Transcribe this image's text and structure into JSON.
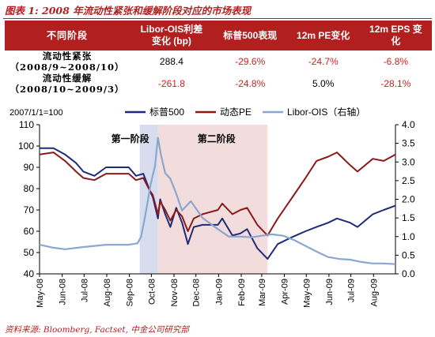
{
  "title": "图表 1: 2008 年流动性紧张和缓解阶段对应的市场表现",
  "table": {
    "headers": [
      "不同阶段",
      "Libor-OIS利差\n变化 (bp)",
      "标普500表现",
      "12m PE变化",
      "12m EPS 变\n化"
    ],
    "rows": [
      {
        "label": "流动性紧张\n（2008/9~2008/10）",
        "values": [
          "288.4",
          "-29.6%",
          "-24.7%",
          "-6.8%"
        ]
      },
      {
        "label": "流动性缓解\n（2008/10~2009/3）",
        "values": [
          "-261.8",
          "-24.8%",
          "5.0%",
          "-28.1%"
        ]
      }
    ]
  },
  "source": "资料来源: Bloomberg, Factset, 中金公司研究部",
  "chart_data": {
    "type": "line",
    "note": "2007/1/1=100",
    "x_ticks": [
      "May-08",
      "Jun-08",
      "Jul-08",
      "Aug-08",
      "Sep-08",
      "Oct-08",
      "Nov-08",
      "Dec-08",
      "Jan-09",
      "Feb-09",
      "Mar-09",
      "Apr-09",
      "May-09",
      "Jun-09",
      "Jul-09",
      "Aug-09"
    ],
    "x_range": [
      "2008-05-01",
      "2009-08-31"
    ],
    "ylim_left": [
      40,
      110
    ],
    "y_ticks_left": [
      40,
      50,
      60,
      70,
      80,
      90,
      100,
      110
    ],
    "ylim_right": [
      0.0,
      4.0
    ],
    "y_ticks_right": [
      "0.0",
      "0.5",
      "1.0",
      "1.5",
      "2.0",
      "2.5",
      "3.0",
      "3.5",
      "4.0"
    ],
    "phases": [
      {
        "label": "第一阶段",
        "start": "2008-09-15",
        "end": "2008-10-10",
        "color": "#d8dcef"
      },
      {
        "label": "第二阶段",
        "start": "2008-10-10",
        "end": "2009-03-09",
        "color": "#f3dcdc"
      }
    ],
    "series": [
      {
        "name": "标普500",
        "color": "#1f2a7a",
        "axis": "left",
        "points": [
          [
            "2008-05-01",
            99
          ],
          [
            "2008-05-20",
            99
          ],
          [
            "2008-06-05",
            96
          ],
          [
            "2008-06-20",
            92
          ],
          [
            "2008-06-30",
            88
          ],
          [
            "2008-07-15",
            86
          ],
          [
            "2008-07-31",
            90
          ],
          [
            "2008-08-15",
            90
          ],
          [
            "2008-08-31",
            90
          ],
          [
            "2008-09-10",
            86
          ],
          [
            "2008-09-20",
            87
          ],
          [
            "2008-09-29",
            79
          ],
          [
            "2008-10-03",
            76
          ],
          [
            "2008-10-10",
            66
          ],
          [
            "2008-10-13",
            75
          ],
          [
            "2008-10-20",
            68
          ],
          [
            "2008-10-27",
            62
          ],
          [
            "2008-11-04",
            71
          ],
          [
            "2008-11-12",
            64
          ],
          [
            "2008-11-20",
            54
          ],
          [
            "2008-11-28",
            62
          ],
          [
            "2008-12-10",
            63
          ],
          [
            "2008-12-31",
            63
          ],
          [
            "2009-01-06",
            66
          ],
          [
            "2009-01-20",
            58
          ],
          [
            "2009-01-31",
            59
          ],
          [
            "2009-02-09",
            61
          ],
          [
            "2009-02-23",
            52
          ],
          [
            "2009-03-09",
            47
          ],
          [
            "2009-03-23",
            54
          ],
          [
            "2009-04-10",
            57
          ],
          [
            "2009-04-30",
            60
          ],
          [
            "2009-05-15",
            62
          ],
          [
            "2009-05-31",
            64
          ],
          [
            "2009-06-12",
            66
          ],
          [
            "2009-06-30",
            64
          ],
          [
            "2009-07-10",
            62
          ],
          [
            "2009-07-31",
            68
          ],
          [
            "2009-08-15",
            70
          ],
          [
            "2009-08-31",
            72
          ]
        ]
      },
      {
        "name": "动态PE",
        "color": "#8b1a1a",
        "axis": "left",
        "points": [
          [
            "2008-05-01",
            96
          ],
          [
            "2008-05-20",
            97
          ],
          [
            "2008-06-05",
            93
          ],
          [
            "2008-06-20",
            88
          ],
          [
            "2008-06-30",
            85
          ],
          [
            "2008-07-15",
            84
          ],
          [
            "2008-07-31",
            87
          ],
          [
            "2008-08-15",
            87
          ],
          [
            "2008-08-31",
            87
          ],
          [
            "2008-09-10",
            84
          ],
          [
            "2008-09-20",
            85
          ],
          [
            "2008-09-29",
            79
          ],
          [
            "2008-10-03",
            77
          ],
          [
            "2008-10-10",
            68
          ],
          [
            "2008-10-13",
            74
          ],
          [
            "2008-10-20",
            70
          ],
          [
            "2008-10-27",
            65
          ],
          [
            "2008-11-04",
            70
          ],
          [
            "2008-11-12",
            67
          ],
          [
            "2008-11-20",
            60
          ],
          [
            "2008-11-28",
            66
          ],
          [
            "2008-12-10",
            68
          ],
          [
            "2008-12-31",
            70
          ],
          [
            "2009-01-06",
            73
          ],
          [
            "2009-01-20",
            68
          ],
          [
            "2009-01-31",
            70
          ],
          [
            "2009-02-09",
            71
          ],
          [
            "2009-02-23",
            63
          ],
          [
            "2009-03-09",
            58
          ],
          [
            "2009-03-23",
            66
          ],
          [
            "2009-04-10",
            75
          ],
          [
            "2009-04-30",
            85
          ],
          [
            "2009-05-15",
            93
          ],
          [
            "2009-05-31",
            95
          ],
          [
            "2009-06-12",
            97
          ],
          [
            "2009-06-30",
            91
          ],
          [
            "2009-07-10",
            88
          ],
          [
            "2009-07-31",
            94
          ],
          [
            "2009-08-15",
            93
          ],
          [
            "2009-08-31",
            96
          ]
        ]
      },
      {
        "name": "Libor-OIS（右轴）",
        "color": "#8aa7d0",
        "axis": "right",
        "points": [
          [
            "2008-05-01",
            0.78
          ],
          [
            "2008-05-20",
            0.7
          ],
          [
            "2008-06-05",
            0.66
          ],
          [
            "2008-06-30",
            0.72
          ],
          [
            "2008-07-31",
            0.78
          ],
          [
            "2008-08-31",
            0.78
          ],
          [
            "2008-09-12",
            0.82
          ],
          [
            "2008-09-17",
            1.0
          ],
          [
            "2008-09-22",
            1.5
          ],
          [
            "2008-09-30",
            2.4
          ],
          [
            "2008-10-06",
            2.9
          ],
          [
            "2008-10-10",
            3.65
          ],
          [
            "2008-10-14",
            3.2
          ],
          [
            "2008-10-20",
            2.7
          ],
          [
            "2008-10-27",
            2.55
          ],
          [
            "2008-11-03",
            2.2
          ],
          [
            "2008-11-12",
            1.7
          ],
          [
            "2008-11-24",
            1.95
          ],
          [
            "2008-12-10",
            1.5
          ],
          [
            "2008-12-31",
            1.2
          ],
          [
            "2009-01-15",
            1.0
          ],
          [
            "2009-01-31",
            1.0
          ],
          [
            "2009-02-15",
            0.98
          ],
          [
            "2009-02-28",
            1.02
          ],
          [
            "2009-03-15",
            1.06
          ],
          [
            "2009-03-31",
            1.02
          ],
          [
            "2009-04-15",
            0.9
          ],
          [
            "2009-04-30",
            0.75
          ],
          [
            "2009-05-15",
            0.6
          ],
          [
            "2009-05-31",
            0.45
          ],
          [
            "2009-06-15",
            0.4
          ],
          [
            "2009-06-30",
            0.38
          ],
          [
            "2009-07-15",
            0.32
          ],
          [
            "2009-07-31",
            0.28
          ],
          [
            "2009-08-15",
            0.28
          ],
          [
            "2009-08-31",
            0.26
          ]
        ]
      }
    ]
  }
}
